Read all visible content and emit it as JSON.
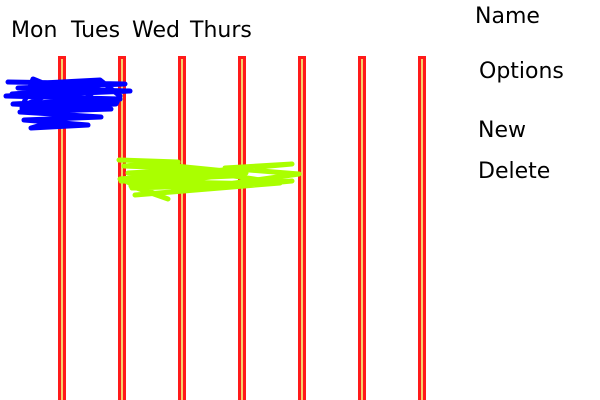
{
  "days": [
    "Mon",
    "Tues",
    "Wed",
    "Thurs"
  ],
  "menu": {
    "name": "Name",
    "options": "Options",
    "new": "New",
    "delete": "Delete"
  },
  "colors": {
    "column_border": "#ff1a1a",
    "column_fill": "#f7cf6a",
    "event_blue": "#0000ff",
    "event_green": "#aaff00"
  }
}
